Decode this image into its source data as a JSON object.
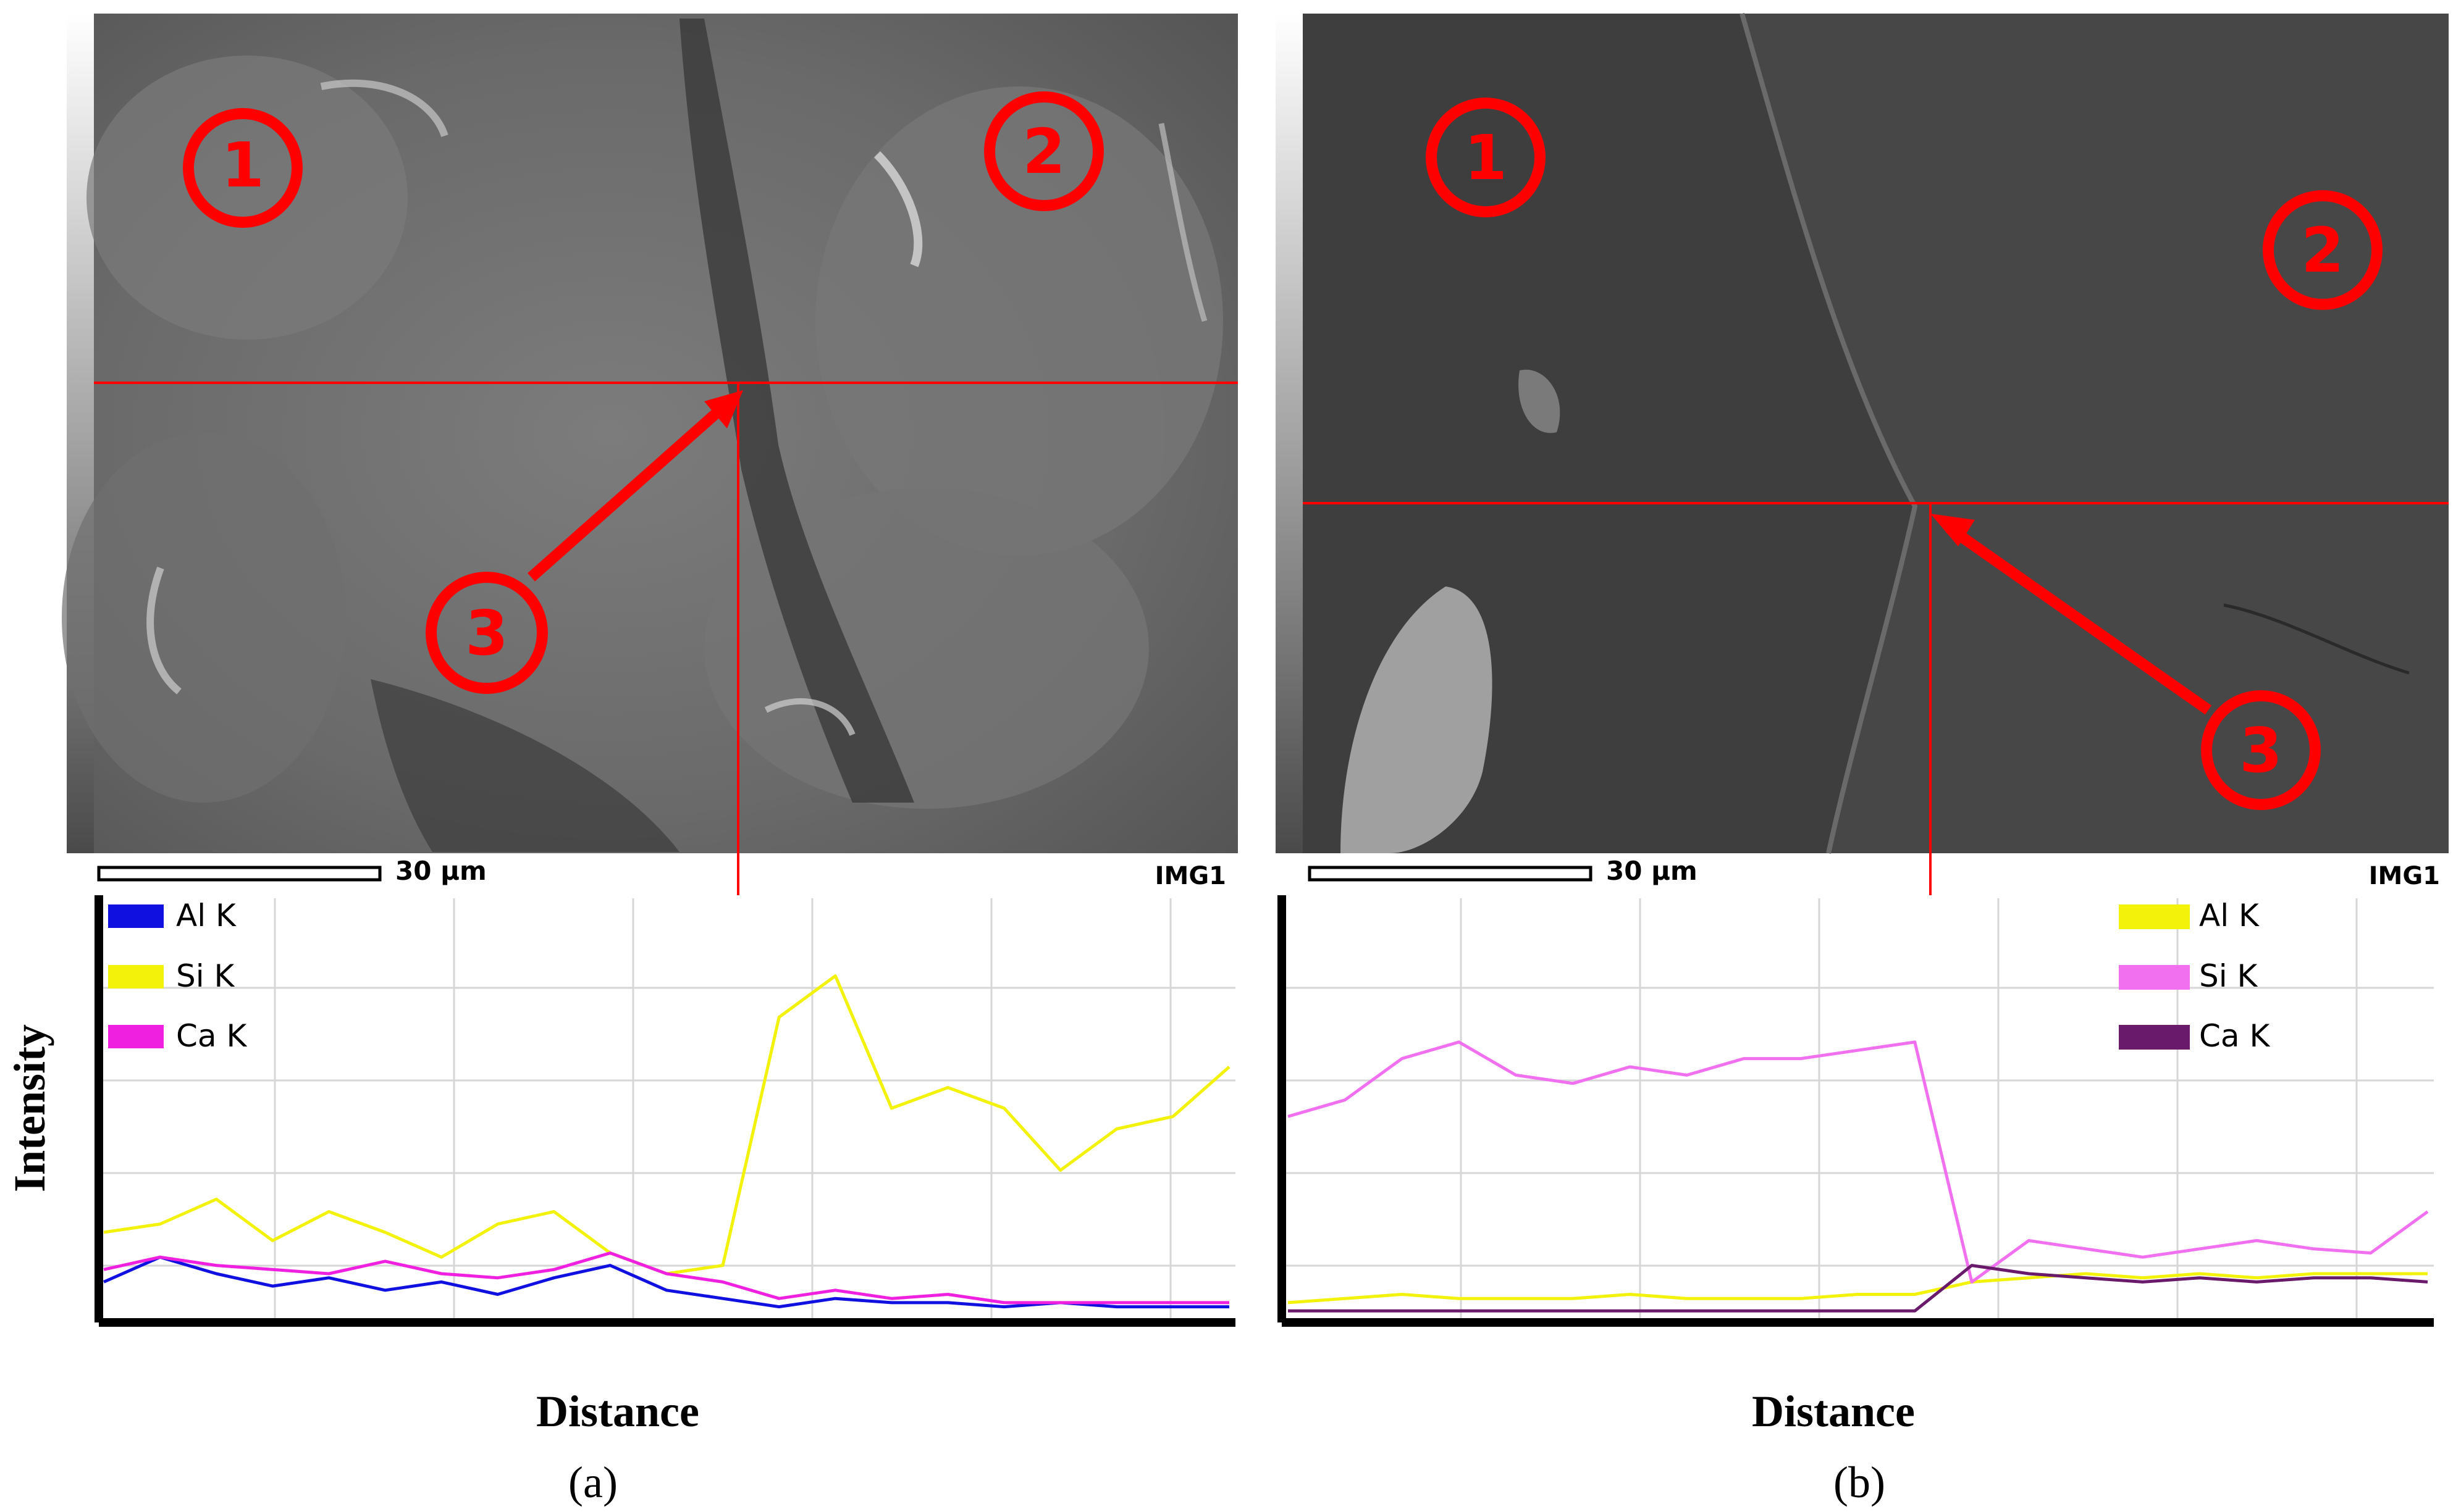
{
  "figure": {
    "y_axis_label": "Intensity",
    "panels": [
      {
        "id": "a",
        "caption": "(a)",
        "x_axis_label": "Distance",
        "scale_bar": "30 μm",
        "image_tag": "IMG1",
        "region_markers": [
          "1",
          "2",
          "3"
        ],
        "legend": [
          {
            "label": "Al K",
            "color": "#1010e0"
          },
          {
            "label": "Si K",
            "color": "#f2f20a"
          },
          {
            "label": "Ca K",
            "color": "#f020e0"
          }
        ]
      },
      {
        "id": "b",
        "caption": "(b)",
        "x_axis_label": "Distance",
        "scale_bar": "30 μm",
        "image_tag": "IMG1",
        "region_markers": [
          "1",
          "2",
          "3"
        ],
        "legend": [
          {
            "label": "Al K",
            "color": "#f2f20a"
          },
          {
            "label": "Si K",
            "color": "#f070f0"
          },
          {
            "label": "Ca K",
            "color": "#6a1a6a"
          }
        ]
      }
    ]
  },
  "chart_data": [
    {
      "type": "line",
      "panel": "a",
      "xlabel": "Distance",
      "ylabel": "Intensity",
      "x": [
        0,
        5,
        10,
        15,
        20,
        25,
        30,
        35,
        40,
        45,
        50,
        55,
        60,
        65,
        70,
        75,
        80,
        85,
        90,
        95,
        100
      ],
      "ylim": [
        0,
        100
      ],
      "series": [
        {
          "name": "Al K",
          "color": "#1010e0",
          "values": [
            8,
            14,
            10,
            7,
            9,
            6,
            8,
            5,
            9,
            12,
            6,
            4,
            2,
            4,
            3,
            3,
            2,
            3,
            2,
            2,
            2
          ]
        },
        {
          "name": "Si K",
          "color": "#f2f20a",
          "values": [
            20,
            22,
            28,
            18,
            25,
            20,
            14,
            22,
            25,
            15,
            10,
            12,
            72,
            82,
            50,
            55,
            50,
            35,
            45,
            48,
            60
          ]
        },
        {
          "name": "Ca K",
          "color": "#f020e0",
          "values": [
            11,
            14,
            12,
            11,
            10,
            13,
            10,
            9,
            11,
            15,
            10,
            8,
            4,
            6,
            4,
            5,
            3,
            3,
            3,
            3,
            3
          ]
        }
      ]
    },
    {
      "type": "line",
      "panel": "b",
      "xlabel": "Distance",
      "ylabel": "Intensity",
      "x": [
        0,
        5,
        10,
        15,
        20,
        25,
        30,
        35,
        40,
        45,
        50,
        55,
        60,
        65,
        70,
        75,
        80,
        85,
        90,
        95,
        100
      ],
      "ylim": [
        0,
        100
      ],
      "series": [
        {
          "name": "Al K",
          "color": "#f2f20a",
          "values": [
            3,
            4,
            5,
            4,
            4,
            4,
            5,
            4,
            4,
            4,
            5,
            5,
            8,
            9,
            10,
            9,
            10,
            9,
            10,
            10,
            10
          ]
        },
        {
          "name": "Si K",
          "color": "#f070f0",
          "values": [
            48,
            52,
            62,
            66,
            58,
            56,
            60,
            58,
            62,
            62,
            64,
            66,
            8,
            18,
            16,
            14,
            16,
            18,
            16,
            15,
            25
          ]
        },
        {
          "name": "Ca K",
          "color": "#6a1a6a",
          "values": [
            1,
            1,
            1,
            1,
            1,
            1,
            1,
            1,
            1,
            1,
            1,
            1,
            12,
            10,
            9,
            8,
            9,
            8,
            9,
            9,
            8
          ]
        }
      ]
    }
  ]
}
